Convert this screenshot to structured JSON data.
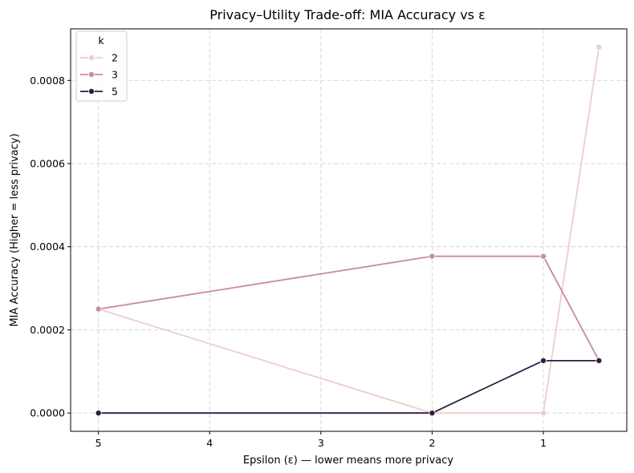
{
  "chart_data": {
    "type": "line",
    "title": "Privacy–Utility Trade-off: MIA Accuracy vs ε",
    "xlabel": "Epsilon (ε) — lower means more privacy",
    "ylabel": "MIA Accuracy (Higher = less privacy)",
    "x_inverted": true,
    "xlim": [
      5.25,
      0.25
    ],
    "ylim": [
      -4.4e-05,
      0.000924
    ],
    "x_ticks": [
      5,
      4,
      3,
      2,
      1
    ],
    "x_tick_labels": [
      "5",
      "4",
      "3",
      "2",
      "1"
    ],
    "y_ticks": [
      0,
      0.0002,
      0.0004,
      0.0006,
      0.0008
    ],
    "y_tick_labels": [
      "0.0000",
      "0.0002",
      "0.0004",
      "0.0006",
      "0.0008"
    ],
    "grid": true,
    "legend": {
      "title": "k",
      "placement": "top-left"
    },
    "series": [
      {
        "name": "2",
        "color": "#ebcfc9",
        "x": [
          5,
          2,
          1,
          0.5
        ],
        "y": [
          0.00025,
          0.0,
          0.0,
          0.00088
        ]
      },
      {
        "name": "3",
        "color": "#c98aa1",
        "x": [
          5,
          2,
          1,
          0.5
        ],
        "y": [
          0.00025,
          0.000377,
          0.000377,
          0.000126
        ]
      },
      {
        "name": "5",
        "color": "#2c1e3d",
        "x": [
          5,
          2,
          1,
          0.5
        ],
        "y": [
          0.0,
          0.0,
          0.000126,
          0.000126
        ]
      }
    ]
  }
}
